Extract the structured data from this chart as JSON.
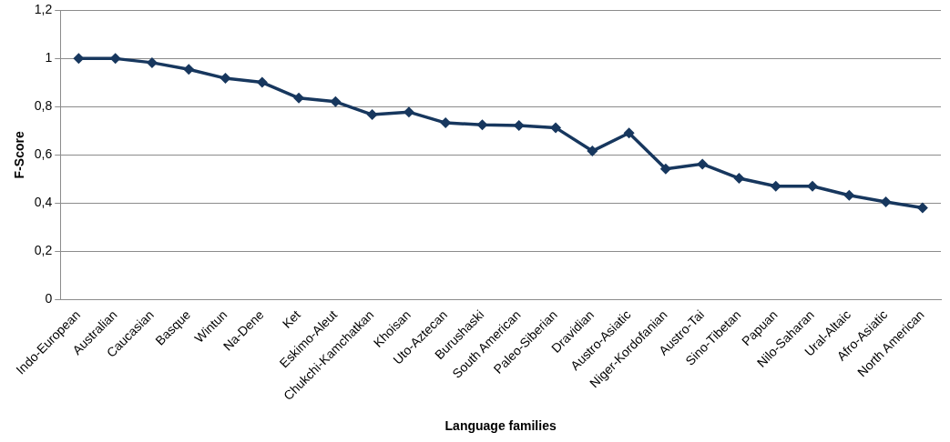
{
  "chart_data": {
    "type": "line",
    "xlabel": "Language families",
    "ylabel": "F-Score",
    "categories": [
      "Indo-European",
      "Australian",
      "Caucasian",
      "Basque",
      "Wintun",
      "Na-Dene",
      "Ket",
      "Eskimo-Aleut",
      "Chukchi-Kamchatkan",
      "Khoisan",
      "Uto-Aztecan",
      "Burushaski",
      "South American",
      "Paleo-Siberian",
      "Dravidian",
      "Austro-Asiatic",
      "Niger-Kordofanian",
      "Austro-Tai",
      "Sino-Tibetan",
      "Papuan",
      "Nilo-Saharan",
      "Ural-Altaic",
      "Afro-Asiatic",
      "North American"
    ],
    "series": [
      {
        "color": "#17375e",
        "values": [
          1.0,
          1.0,
          0.983,
          0.955,
          0.918,
          0.901,
          0.836,
          0.821,
          0.767,
          0.778,
          0.733,
          0.725,
          0.722,
          0.713,
          0.616,
          0.691,
          0.542,
          0.562,
          0.503,
          0.47,
          0.47,
          0.432,
          0.405,
          0.38
        ]
      }
    ],
    "ylim": [
      0,
      1.2
    ],
    "yticks": [
      {
        "value": 0,
        "label": "0"
      },
      {
        "value": 0.2,
        "label": "0,2"
      },
      {
        "value": 0.4,
        "label": "0,4"
      },
      {
        "value": 0.6,
        "label": "0,6"
      },
      {
        "value": 0.8,
        "label": "0,8"
      },
      {
        "value": 1,
        "label": "1"
      },
      {
        "value": 1.2,
        "label": "1,2"
      }
    ],
    "grid": "y",
    "legend": false,
    "marker": "diamond",
    "line_style": "solid"
  }
}
